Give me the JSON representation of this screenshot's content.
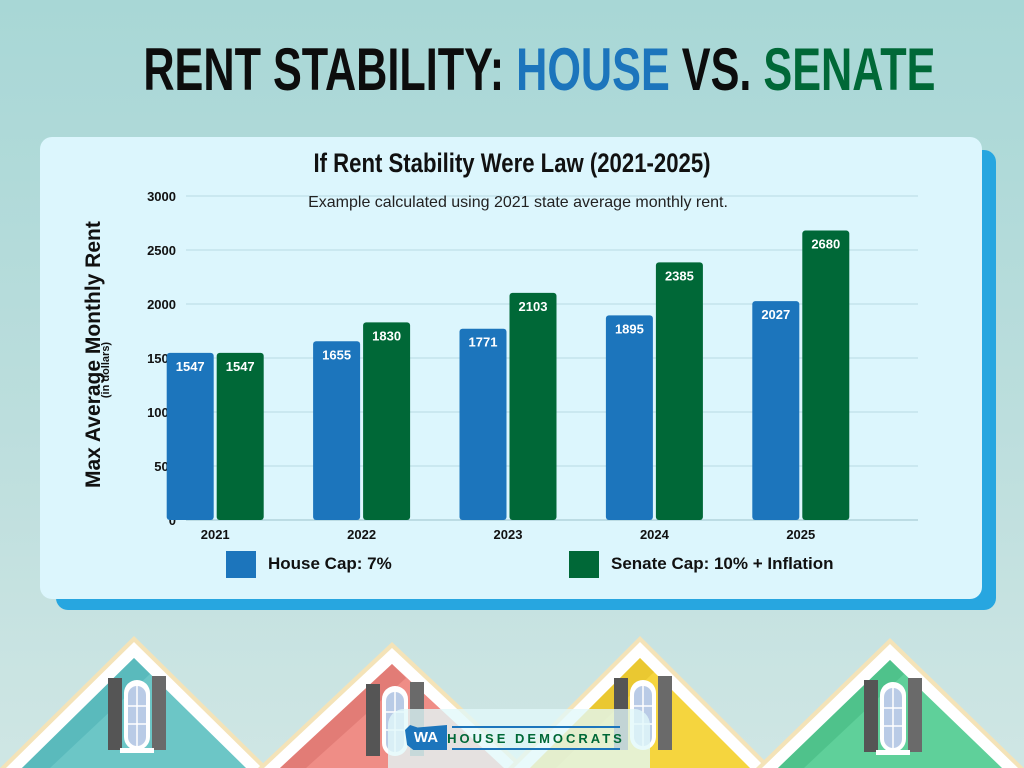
{
  "headline": {
    "part1": "RENT STABILITY: ",
    "part2": "HOUSE",
    "part3": " VS. ",
    "part4": "SENATE"
  },
  "colors": {
    "house": "#1c75bc",
    "senate": "#006837",
    "card_bg": "#dcf6fd",
    "card_shadow": "#27a6e0"
  },
  "chart_data": {
    "type": "bar",
    "title": "If Rent Stability Were Law (2021-2025)",
    "subtitle": "Example calculated using 2021 state average monthly rent.",
    "xlabel": "",
    "ylabel": "Max Average Monthly Rent",
    "ylabel_sub": "(in dollars)",
    "categories": [
      "2021",
      "2022",
      "2023",
      "2024",
      "2025"
    ],
    "series": [
      {
        "name": "House Cap: 7%",
        "color": "#1c75bc",
        "values": [
          1547,
          1655,
          1771,
          1895,
          2027
        ]
      },
      {
        "name": "Senate Cap: 10% + Inflation",
        "color": "#006837",
        "values": [
          1547,
          1830,
          2103,
          2385,
          2680
        ]
      }
    ],
    "ylim": [
      0,
      3000
    ],
    "yticks": [
      0,
      500,
      1000,
      1500,
      2000,
      2500,
      3000
    ],
    "grid": true,
    "legend_position": "bottom",
    "data_labels": true
  },
  "footer": {
    "logo_badge": "WA",
    "logo_text": "HOUSE DEMOCRATS"
  }
}
